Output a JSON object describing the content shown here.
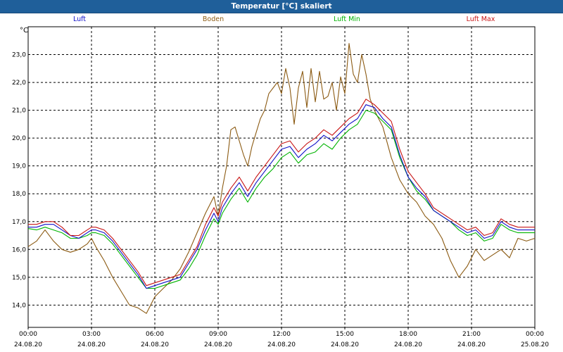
{
  "window": {
    "title": "Temperatur [°C] skaliert"
  },
  "chart_data": {
    "type": "line",
    "title": "Temperatur [°C] skaliert",
    "ylabel": "°C",
    "ylim": [
      13.2,
      24.0
    ],
    "y_ticks": [
      14.0,
      15.0,
      16.0,
      17.0,
      18.0,
      19.0,
      20.0,
      21.0,
      22.0,
      23.0
    ],
    "y_tick_labels": [
      "14,0",
      "15,0",
      "16,0",
      "17,0",
      "18,0",
      "19,0",
      "20,0",
      "21,0",
      "22,0",
      "23,0"
    ],
    "xlim": [
      0,
      24
    ],
    "x_ticks": [
      0,
      3,
      6,
      9,
      12,
      15,
      18,
      21,
      24
    ],
    "x_tick_times": [
      "00:00",
      "03:00",
      "06:00",
      "09:00",
      "12:00",
      "15:00",
      "18:00",
      "21:00",
      "00:00"
    ],
    "x_tick_dates": [
      "24.08.20",
      "24.08.20",
      "24.08.20",
      "24.08.20",
      "24.08.20",
      "24.08.20",
      "24.08.20",
      "24.08.20",
      "25.08.20"
    ],
    "grid": true,
    "series": [
      {
        "name": "Boden",
        "color": "#8b5a12",
        "x": [
          0,
          0.4,
          0.8,
          1.2,
          1.6,
          2.0,
          2.4,
          2.8,
          3.0,
          3.2,
          3.6,
          4.0,
          4.4,
          4.8,
          5.2,
          5.6,
          6.0,
          6.4,
          6.8,
          7.2,
          7.6,
          8.0,
          8.4,
          8.8,
          9.0,
          9.2,
          9.4,
          9.6,
          9.8,
          10.0,
          10.2,
          10.4,
          10.6,
          10.8,
          11.0,
          11.2,
          11.4,
          11.6,
          11.8,
          12.0,
          12.2,
          12.4,
          12.6,
          12.8,
          13.0,
          13.2,
          13.4,
          13.6,
          13.8,
          14.0,
          14.2,
          14.4,
          14.6,
          14.8,
          15.0,
          15.2,
          15.4,
          15.6,
          15.8,
          16.0,
          16.2,
          16.4,
          16.6,
          16.8,
          17.2,
          17.6,
          18.0,
          18.4,
          18.8,
          19.2,
          19.6,
          20.0,
          20.4,
          20.8,
          21.2,
          21.6,
          22.0,
          22.4,
          22.8,
          23.2,
          23.6,
          24.0
        ],
        "values": [
          16.1,
          16.3,
          16.7,
          16.3,
          16.0,
          15.9,
          16.0,
          16.2,
          16.4,
          16.1,
          15.6,
          15.0,
          14.5,
          14.0,
          13.9,
          13.7,
          14.3,
          14.6,
          14.9,
          15.3,
          15.9,
          16.6,
          17.3,
          17.9,
          17.2,
          18.2,
          19.0,
          20.3,
          20.4,
          19.9,
          19.4,
          19.0,
          19.7,
          20.2,
          20.7,
          21.0,
          21.6,
          21.8,
          22.0,
          21.6,
          22.5,
          21.8,
          20.5,
          21.8,
          22.4,
          21.1,
          22.5,
          21.3,
          22.4,
          21.4,
          21.5,
          22.0,
          21.0,
          22.2,
          21.6,
          23.4,
          22.3,
          22.0,
          23.0,
          22.3,
          21.4,
          21.0,
          20.7,
          20.4,
          19.3,
          18.5,
          18.0,
          17.7,
          17.2,
          16.9,
          16.4,
          15.6,
          15.0,
          15.4,
          16.0,
          15.6,
          15.8,
          16.0,
          15.7,
          16.4,
          16.3,
          16.4
        ]
      },
      {
        "name": "Luft Min",
        "color": "#00b400",
        "x": [
          0,
          0.4,
          0.8,
          1.2,
          1.6,
          2.0,
          2.4,
          2.8,
          3.0,
          3.2,
          3.6,
          4.0,
          4.4,
          4.8,
          5.2,
          5.6,
          6.0,
          6.4,
          6.8,
          7.2,
          7.6,
          8.0,
          8.4,
          8.8,
          9.0,
          9.2,
          9.6,
          10.0,
          10.4,
          10.8,
          11.2,
          11.6,
          12.0,
          12.4,
          12.8,
          13.2,
          13.6,
          14.0,
          14.4,
          14.8,
          15.2,
          15.6,
          16.0,
          16.4,
          16.8,
          17.2,
          17.6,
          18.0,
          18.4,
          18.8,
          19.2,
          19.6,
          20.0,
          20.4,
          20.8,
          21.2,
          21.6,
          22.0,
          22.4,
          22.8,
          23.2,
          23.6,
          24.0
        ],
        "values": [
          16.75,
          16.7,
          16.8,
          16.7,
          16.6,
          16.4,
          16.4,
          16.5,
          16.6,
          16.6,
          16.5,
          16.2,
          15.8,
          15.4,
          15.0,
          14.6,
          14.6,
          14.7,
          14.8,
          14.9,
          15.3,
          15.8,
          16.5,
          17.1,
          16.9,
          17.3,
          17.8,
          18.2,
          17.7,
          18.2,
          18.6,
          18.9,
          19.3,
          19.5,
          19.1,
          19.4,
          19.5,
          19.8,
          19.6,
          20.0,
          20.3,
          20.5,
          21.0,
          20.9,
          20.6,
          20.3,
          19.3,
          18.6,
          18.1,
          17.8,
          17.4,
          17.2,
          17.0,
          16.7,
          16.5,
          16.6,
          16.3,
          16.4,
          16.9,
          16.7,
          16.6,
          16.6,
          16.6
        ]
      },
      {
        "name": "Luft",
        "color": "#1010c8",
        "x": [
          0,
          0.4,
          0.8,
          1.2,
          1.6,
          2.0,
          2.4,
          2.8,
          3.0,
          3.2,
          3.6,
          4.0,
          4.4,
          4.8,
          5.2,
          5.6,
          6.0,
          6.4,
          6.8,
          7.2,
          7.6,
          8.0,
          8.4,
          8.8,
          9.0,
          9.2,
          9.6,
          10.0,
          10.4,
          10.8,
          11.2,
          11.6,
          12.0,
          12.4,
          12.8,
          13.2,
          13.6,
          14.0,
          14.4,
          14.8,
          15.2,
          15.6,
          16.0,
          16.4,
          16.8,
          17.2,
          17.6,
          18.0,
          18.4,
          18.8,
          19.2,
          19.6,
          20.0,
          20.4,
          20.8,
          21.2,
          21.6,
          22.0,
          22.4,
          22.8,
          23.2,
          23.6,
          24.0
        ],
        "values": [
          16.8,
          16.8,
          16.9,
          16.9,
          16.7,
          16.5,
          16.4,
          16.6,
          16.7,
          16.7,
          16.6,
          16.3,
          15.9,
          15.5,
          15.1,
          14.6,
          14.7,
          14.8,
          14.9,
          15.0,
          15.5,
          16.0,
          16.7,
          17.3,
          17.0,
          17.5,
          18.0,
          18.4,
          17.9,
          18.4,
          18.8,
          19.2,
          19.6,
          19.7,
          19.3,
          19.6,
          19.8,
          20.1,
          19.9,
          20.2,
          20.5,
          20.7,
          21.2,
          21.1,
          20.7,
          20.4,
          19.4,
          18.6,
          18.2,
          17.9,
          17.4,
          17.2,
          17.0,
          16.8,
          16.6,
          16.7,
          16.4,
          16.5,
          17.0,
          16.8,
          16.7,
          16.7,
          16.7
        ]
      },
      {
        "name": "Luft Max",
        "color": "#c81414",
        "x": [
          0,
          0.4,
          0.8,
          1.2,
          1.6,
          2.0,
          2.4,
          2.8,
          3.0,
          3.2,
          3.6,
          4.0,
          4.4,
          4.8,
          5.2,
          5.6,
          6.0,
          6.4,
          6.8,
          7.2,
          7.6,
          8.0,
          8.4,
          8.8,
          9.0,
          9.2,
          9.6,
          10.0,
          10.4,
          10.8,
          11.2,
          11.6,
          12.0,
          12.4,
          12.8,
          13.2,
          13.6,
          14.0,
          14.4,
          14.8,
          15.2,
          15.6,
          16.0,
          16.4,
          16.8,
          17.2,
          17.6,
          18.0,
          18.4,
          18.8,
          19.2,
          19.6,
          20.0,
          20.4,
          20.8,
          21.2,
          21.6,
          22.0,
          22.4,
          22.8,
          23.2,
          23.6,
          24.0
        ],
        "values": [
          16.9,
          16.9,
          17.0,
          17.0,
          16.8,
          16.5,
          16.5,
          16.7,
          16.8,
          16.8,
          16.7,
          16.4,
          16.0,
          15.6,
          15.2,
          14.7,
          14.8,
          14.9,
          15.0,
          15.1,
          15.6,
          16.1,
          16.9,
          17.5,
          17.2,
          17.7,
          18.2,
          18.6,
          18.1,
          18.6,
          19.0,
          19.4,
          19.8,
          19.9,
          19.5,
          19.8,
          20.0,
          20.3,
          20.1,
          20.4,
          20.7,
          20.9,
          21.4,
          21.2,
          20.9,
          20.6,
          19.6,
          18.8,
          18.4,
          18.0,
          17.5,
          17.3,
          17.1,
          16.9,
          16.7,
          16.8,
          16.5,
          16.6,
          17.1,
          16.9,
          16.8,
          16.8,
          16.8
        ]
      }
    ],
    "legend": [
      {
        "label": "Luft",
        "color": "#1010c8"
      },
      {
        "label": "Boden",
        "color": "#8b5a12"
      },
      {
        "label": "Luft Min",
        "color": "#00b400"
      },
      {
        "label": "Luft Max",
        "color": "#c81414"
      }
    ]
  }
}
